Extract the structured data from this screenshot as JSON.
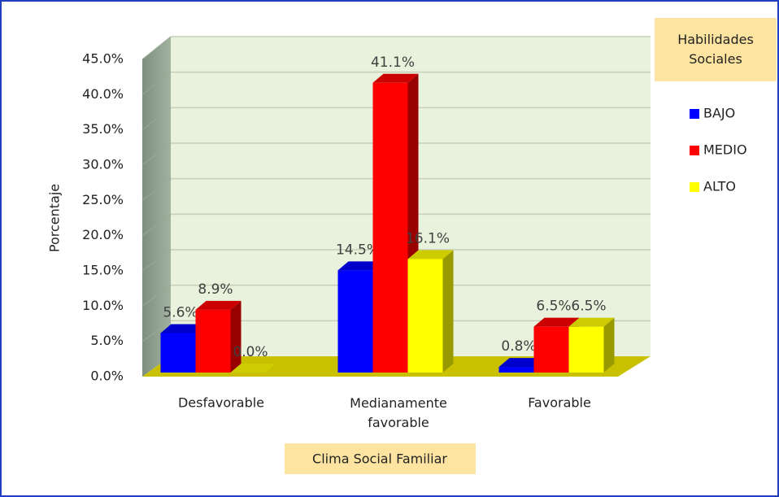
{
  "chart_data": {
    "type": "bar3d",
    "categories": [
      "Desfavorable",
      "Medianamente favorable",
      "Favorable"
    ],
    "series": [
      {
        "name": "BAJO",
        "color": "#0000ff",
        "values": [
          5.6,
          14.5,
          0.8
        ],
        "value_labels": [
          "5.6%",
          "14.5%",
          "0.8%"
        ]
      },
      {
        "name": "MEDIO",
        "color": "#ff0000",
        "values": [
          8.9,
          41.1,
          6.5
        ],
        "value_labels": [
          "8.9%",
          "41.1%",
          "6.5%"
        ]
      },
      {
        "name": "ALTO",
        "color": "#ffff00",
        "values": [
          0.0,
          16.1,
          6.5
        ],
        "value_labels": [
          "0.0%",
          "16.1%",
          "6.5%"
        ]
      }
    ],
    "ylim": [
      0,
      45
    ],
    "yticks": [
      {
        "value": 0,
        "label": "0.0%"
      },
      {
        "value": 5,
        "label": "5.0%"
      },
      {
        "value": 10,
        "label": "10.0%"
      },
      {
        "value": 15,
        "label": "15.0%"
      },
      {
        "value": 20,
        "label": "20.0%"
      },
      {
        "value": 25,
        "label": "25.0%"
      },
      {
        "value": 30,
        "label": "30.0%"
      },
      {
        "value": 35,
        "label": "35.0%"
      },
      {
        "value": 40,
        "label": "40.0%"
      },
      {
        "value": 45,
        "label": "45.0%"
      }
    ],
    "y_label": "Porcentaje",
    "x_label": "Clima Social Familiar",
    "legend_title": "Habilidades Sociales",
    "legend_position": "right",
    "grid": true
  }
}
